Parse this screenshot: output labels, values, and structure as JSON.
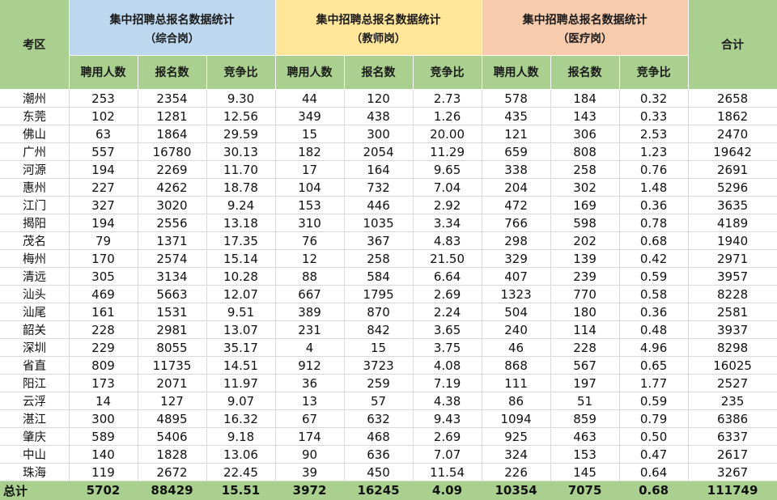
{
  "header": {
    "region_label": "考区",
    "total_label": "合计",
    "groups": [
      {
        "title": "集中招聘总报名数据统计",
        "subtitle": "（综合岗）"
      },
      {
        "title": "集中招聘总报名数据统计",
        "subtitle": "（教师岗）"
      },
      {
        "title": "集中招聘总报名数据统计",
        "subtitle": "（医疗岗）"
      }
    ],
    "sub_columns": [
      "聘用人数",
      "报名数",
      "竞争比"
    ]
  },
  "rows": [
    [
      "潮州",
      "253",
      "2354",
      "9.30",
      "44",
      "120",
      "2.73",
      "578",
      "184",
      "0.32",
      "2658"
    ],
    [
      "东莞",
      "102",
      "1281",
      "12.56",
      "349",
      "438",
      "1.26",
      "435",
      "143",
      "0.33",
      "1862"
    ],
    [
      "佛山",
      "63",
      "1864",
      "29.59",
      "15",
      "300",
      "20.00",
      "121",
      "306",
      "2.53",
      "2470"
    ],
    [
      "广州",
      "557",
      "16780",
      "30.13",
      "182",
      "2054",
      "11.29",
      "659",
      "808",
      "1.23",
      "19642"
    ],
    [
      "河源",
      "194",
      "2269",
      "11.70",
      "17",
      "164",
      "9.65",
      "338",
      "258",
      "0.76",
      "2691"
    ],
    [
      "惠州",
      "227",
      "4262",
      "18.78",
      "104",
      "732",
      "7.04",
      "204",
      "302",
      "1.48",
      "5296"
    ],
    [
      "江门",
      "327",
      "3020",
      "9.24",
      "153",
      "446",
      "2.92",
      "472",
      "169",
      "0.36",
      "3635"
    ],
    [
      "揭阳",
      "194",
      "2556",
      "13.18",
      "310",
      "1035",
      "3.34",
      "766",
      "598",
      "0.78",
      "4189"
    ],
    [
      "茂名",
      "79",
      "1371",
      "17.35",
      "76",
      "367",
      "4.83",
      "298",
      "202",
      "0.68",
      "1940"
    ],
    [
      "梅州",
      "170",
      "2574",
      "15.14",
      "12",
      "258",
      "21.50",
      "329",
      "139",
      "0.42",
      "2971"
    ],
    [
      "清远",
      "305",
      "3134",
      "10.28",
      "88",
      "584",
      "6.64",
      "407",
      "239",
      "0.59",
      "3957"
    ],
    [
      "汕头",
      "469",
      "5663",
      "12.07",
      "667",
      "1795",
      "2.69",
      "1323",
      "770",
      "0.58",
      "8228"
    ],
    [
      "汕尾",
      "161",
      "1531",
      "9.51",
      "389",
      "870",
      "2.24",
      "504",
      "180",
      "0.36",
      "2581"
    ],
    [
      "韶关",
      "228",
      "2981",
      "13.07",
      "231",
      "842",
      "3.65",
      "240",
      "114",
      "0.48",
      "3937"
    ],
    [
      "深圳",
      "229",
      "8055",
      "35.17",
      "4",
      "15",
      "3.75",
      "46",
      "228",
      "4.96",
      "8298"
    ],
    [
      "省直",
      "809",
      "11735",
      "14.51",
      "912",
      "3723",
      "4.08",
      "868",
      "567",
      "0.65",
      "16025"
    ],
    [
      "阳江",
      "173",
      "2071",
      "11.97",
      "36",
      "259",
      "7.19",
      "111",
      "197",
      "1.77",
      "2527"
    ],
    [
      "云浮",
      "14",
      "127",
      "9.07",
      "13",
      "57",
      "4.38",
      "86",
      "51",
      "0.59",
      "235"
    ],
    [
      "湛江",
      "300",
      "4895",
      "16.32",
      "67",
      "632",
      "9.43",
      "1094",
      "859",
      "0.79",
      "6386"
    ],
    [
      "肇庆",
      "589",
      "5406",
      "9.18",
      "174",
      "468",
      "2.69",
      "925",
      "463",
      "0.50",
      "6337"
    ],
    [
      "中山",
      "140",
      "1828",
      "13.06",
      "90",
      "636",
      "7.07",
      "324",
      "153",
      "0.47",
      "2617"
    ],
    [
      "珠海",
      "119",
      "2672",
      "22.45",
      "39",
      "450",
      "11.54",
      "226",
      "145",
      "0.64",
      "3267"
    ]
  ],
  "total_row": [
    "总计",
    "5702",
    "88429",
    "15.51",
    "3972",
    "16245",
    "4.09",
    "10354",
    "7075",
    "0.68",
    "111749"
  ]
}
